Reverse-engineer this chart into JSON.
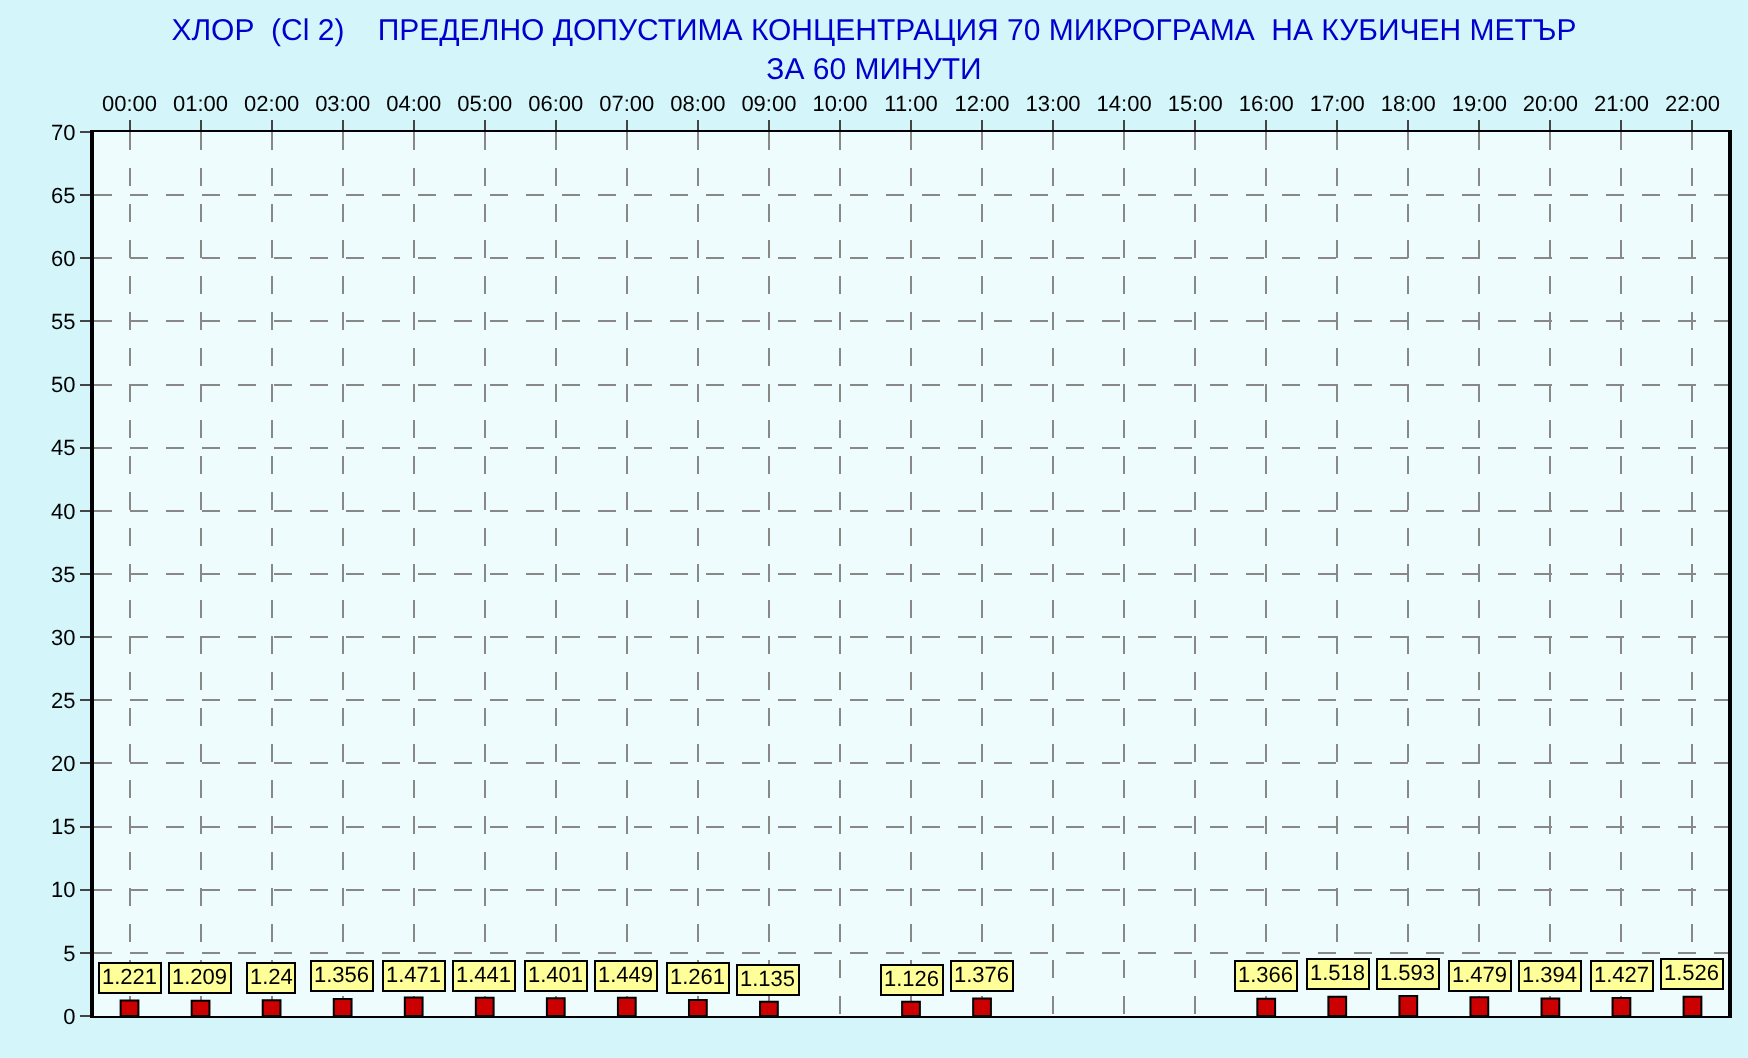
{
  "chart_data": {
    "type": "bar",
    "title": "ХЛОР  (Cl 2)    ПРЕДЕЛНО ДОПУСТИМА КОНЦЕНТРАЦИЯ 70 МИКРОГРАМА  НА КУБИЧЕН МЕТЪР\nЗА 60 МИНУТИ",
    "categories": [
      "00:00",
      "01:00",
      "02:00",
      "03:00",
      "04:00",
      "05:00",
      "06:00",
      "07:00",
      "08:00",
      "09:00",
      "10:00",
      "11:00",
      "12:00",
      "13:00",
      "14:00",
      "15:00",
      "16:00",
      "17:00",
      "18:00",
      "19:00",
      "20:00",
      "21:00",
      "22:00"
    ],
    "series": [
      {
        "color": "#cc0000",
        "values": [
          1.221,
          1.209,
          1.24,
          1.356,
          1.471,
          1.441,
          1.401,
          1.449,
          1.261,
          1.135,
          null,
          1.126,
          1.376,
          null,
          null,
          null,
          1.366,
          1.518,
          1.593,
          1.479,
          1.394,
          1.427,
          1.526
        ]
      }
    ],
    "ylim": [
      0,
      70
    ],
    "yticks": [
      0,
      5,
      10,
      15,
      20,
      25,
      30,
      35,
      40,
      45,
      50,
      55,
      60,
      65,
      70
    ],
    "grid": true,
    "data_labels": true
  }
}
